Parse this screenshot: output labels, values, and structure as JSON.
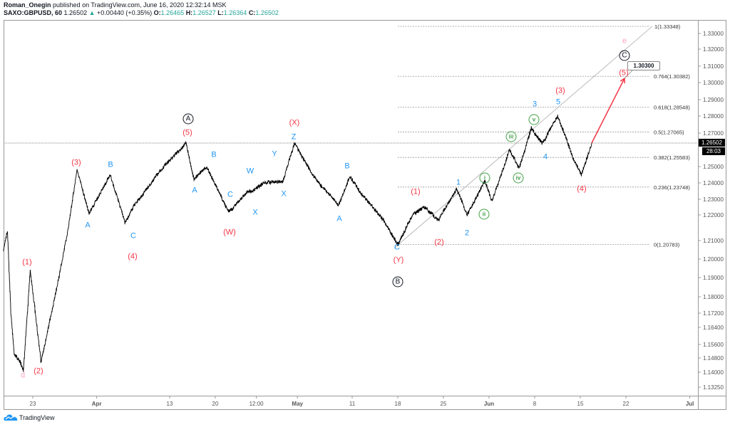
{
  "header": {
    "author": "Roman_Onegin",
    "published": "published on TradingView.com, June 16, 2020 12:32:14 MSK",
    "symbol": "SAXO:GBPUSD, 60",
    "last": "1.26502",
    "change_arrow": "▲",
    "change": "+0.00440 (+0.35%)",
    "o_label": "O:",
    "o": "1.26465",
    "h_label": "H:",
    "h": "1.26527",
    "l_label": "L:",
    "l": "1.26364",
    "c_label": "C:",
    "c": "1.26502"
  },
  "brand": {
    "name": "TradingView",
    "icon": "tradingview-cloud-icon"
  },
  "colors": {
    "up": "#26a69a",
    "wave_red": "#f23645",
    "wave_blue": "#2196f3",
    "wave_green": "#43a047",
    "wave_pink": "#f8a5c2",
    "projection": "#f23645"
  },
  "chart_data": {
    "type": "line",
    "symbol": "GBPUSD",
    "y_ticks": [
      "1.33000",
      "1.32000",
      "1.31000",
      "1.30000",
      "1.29000",
      "1.28000",
      "1.27000",
      "1.25000",
      "1.24000",
      "1.23000",
      "1.22000",
      "1.21000",
      "1.20000",
      "1.19000",
      "1.18000",
      "1.17200",
      "1.16400",
      "1.15600",
      "1.14800",
      "1.14000",
      "1.13250"
    ],
    "x_ticks": [
      {
        "label": "23",
        "date": "2020-03-23",
        "bold": false
      },
      {
        "label": "Apr",
        "date": "2020-04-01",
        "bold": true
      },
      {
        "label": "13",
        "date": "2020-04-13",
        "bold": false
      },
      {
        "label": "20",
        "date": "2020-04-20",
        "bold": false
      },
      {
        "label": "12:00",
        "date": "2020-04-24 12:00",
        "bold": false
      },
      {
        "label": "May",
        "date": "2020-05-01",
        "bold": true
      },
      {
        "label": "11",
        "date": "2020-05-11",
        "bold": false
      },
      {
        "label": "18",
        "date": "2020-05-18",
        "bold": false
      },
      {
        "label": "25",
        "date": "2020-05-25",
        "bold": false
      },
      {
        "label": "Jun",
        "date": "2020-06-01",
        "bold": true
      },
      {
        "label": "8",
        "date": "2020-06-08",
        "bold": false
      },
      {
        "label": "15",
        "date": "2020-06-15",
        "bold": false
      },
      {
        "label": "22",
        "date": "2020-06-22",
        "bold": false
      },
      {
        "label": "Jul",
        "date": "2020-07-01",
        "bold": true
      }
    ],
    "price_pivots": [
      [
        "2020-03-17 19:00",
        1.205
      ],
      [
        "2020-03-18 05:00",
        1.214
      ],
      [
        "2020-03-18 14:00",
        1.172
      ],
      [
        "2020-03-18 23:00",
        1.15
      ],
      [
        "2020-03-19 14:00",
        1.146
      ],
      [
        "2020-03-19 23:00",
        1.141
      ],
      [
        "2020-03-20 17:00",
        1.194
      ],
      [
        "2020-03-23 21:00",
        1.146
      ],
      [
        "2020-03-25 16:00",
        1.186
      ],
      [
        "2020-03-26 20:00",
        1.214
      ],
      [
        "2020-03-27 20:00",
        1.248
      ],
      [
        "2020-03-31 04:00",
        1.221
      ],
      [
        "2020-04-02 12:00",
        1.245
      ],
      [
        "2020-04-06 02:00",
        1.217
      ],
      [
        "2020-04-07 02:00",
        1.226
      ],
      [
        "2020-04-09 14:00",
        1.245
      ],
      [
        "2020-04-14 19:00",
        1.265
      ],
      [
        "2020-04-15 16:00",
        1.242
      ],
      [
        "2020-04-17 01:00",
        1.25
      ],
      [
        "2020-04-21 10:00",
        1.222
      ],
      [
        "2020-04-23 09:00",
        1.234
      ],
      [
        "2020-04-27 07:00",
        1.24
      ],
      [
        "2020-04-29 10:00",
        1.241
      ],
      [
        "2020-04-30 16:00",
        1.265
      ],
      [
        "2020-05-04 19:00",
        1.244
      ],
      [
        "2020-05-07 12:00",
        1.226
      ],
      [
        "2020-05-08 17:00",
        1.244
      ],
      [
        "2020-05-13 19:00",
        1.221
      ],
      [
        "2020-05-18 00:00",
        1.2078
      ],
      [
        "2020-05-19 17:00",
        1.221
      ],
      [
        "2020-05-20 21:00",
        1.225
      ],
      [
        "2020-05-22 11:00",
        1.218
      ],
      [
        "2020-05-26 10:00",
        1.236
      ],
      [
        "2020-05-27 14:00",
        1.22
      ],
      [
        "2020-05-29 13:00",
        1.241
      ],
      [
        "2020-06-01 07:00",
        1.229
      ],
      [
        "2020-06-03 06:00",
        1.261
      ],
      [
        "2020-06-04 07:00",
        1.249
      ],
      [
        "2020-06-05 15:00",
        1.273
      ],
      [
        "2020-06-08 19:00",
        1.265
      ],
      [
        "2020-06-10 12:00",
        1.28
      ],
      [
        "2020-06-12 07:00",
        1.254
      ],
      [
        "2020-06-15 02:00",
        1.245
      ],
      [
        "2020-06-16 06:00",
        1.26502
      ]
    ],
    "current_price": "1.26502",
    "bar_countdown": "28:03",
    "projection": {
      "from": [
        "2020-06-16 06:00",
        1.26502
      ],
      "to": [
        "2020-06-22 00:00",
        1.303
      ],
      "label": "1.30300"
    },
    "fib_levels": [
      {
        "label": "1(1.33348)",
        "price": 1.33348
      },
      {
        "label": "0.764(1.30382)",
        "price": 1.30382
      },
      {
        "label": "0.618(1.28548)",
        "price": 1.28548
      },
      {
        "label": "0.5(1.27065)",
        "price": 1.27065
      },
      {
        "label": "0.382(1.25583)",
        "price": 1.25583
      },
      {
        "label": "0.236(1.23748)",
        "price": 1.23748
      },
      {
        "label": "0(1.20783)",
        "price": 1.20783
      }
    ],
    "wave_labels": [
      {
        "text": "(1)",
        "color": "red"
      },
      {
        "text": "(2)",
        "color": "red"
      },
      {
        "text": "(3)",
        "color": "red"
      },
      {
        "text": "(4)",
        "color": "red"
      },
      {
        "text": "(5)",
        "color": "red"
      },
      {
        "text": "(W)",
        "color": "red"
      },
      {
        "text": "(X)",
        "color": "red"
      },
      {
        "text": "(Y)",
        "color": "red"
      },
      {
        "text": "(1)",
        "color": "red"
      },
      {
        "text": "(2)",
        "color": "red"
      },
      {
        "text": "(3)",
        "color": "red"
      },
      {
        "text": "(4)",
        "color": "red"
      },
      {
        "text": "(5)",
        "color": "red"
      },
      {
        "text": "A",
        "color": "blue"
      },
      {
        "text": "B",
        "color": "blue"
      },
      {
        "text": "C",
        "color": "blue"
      },
      {
        "text": "A",
        "color": "blue"
      },
      {
        "text": "B",
        "color": "blue"
      },
      {
        "text": "C",
        "color": "blue"
      },
      {
        "text": "W",
        "color": "blue"
      },
      {
        "text": "X",
        "color": "blue"
      },
      {
        "text": "Y",
        "color": "blue"
      },
      {
        "text": "X",
        "color": "blue"
      },
      {
        "text": "Z",
        "color": "blue"
      },
      {
        "text": "A",
        "color": "blue"
      },
      {
        "text": "B",
        "color": "blue"
      },
      {
        "text": "C",
        "color": "blue"
      },
      {
        "text": "1",
        "color": "blue"
      },
      {
        "text": "2",
        "color": "blue"
      },
      {
        "text": "3",
        "color": "blue"
      },
      {
        "text": "4",
        "color": "blue"
      },
      {
        "text": "5",
        "color": "blue"
      },
      {
        "text": "i",
        "color": "green"
      },
      {
        "text": "ii",
        "color": "green"
      },
      {
        "text": "iii",
        "color": "green"
      },
      {
        "text": "iv",
        "color": "green"
      },
      {
        "text": "v",
        "color": "green"
      },
      {
        "text": "A",
        "color": "black"
      },
      {
        "text": "B",
        "color": "black"
      },
      {
        "text": "C",
        "color": "black"
      },
      {
        "text": "d",
        "color": "pink"
      },
      {
        "text": "e",
        "color": "pink"
      }
    ]
  }
}
